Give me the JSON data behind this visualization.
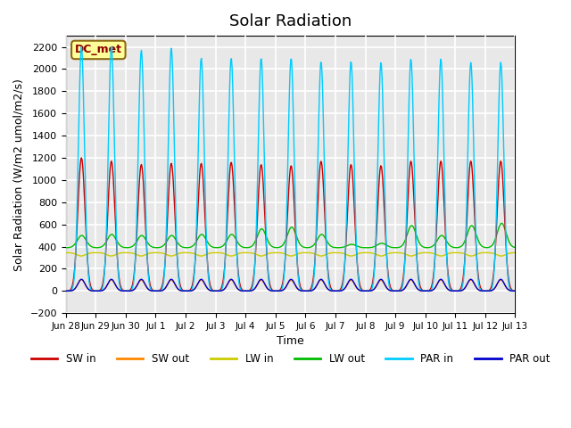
{
  "title": "Solar Radiation",
  "ylabel": "Solar Radiation (W/m2 umol/m2/s)",
  "xlabel": "Time",
  "ylim": [
    -200,
    2300
  ],
  "yticks": [
    -200,
    0,
    200,
    400,
    600,
    800,
    1000,
    1200,
    1400,
    1600,
    1800,
    2000,
    2200
  ],
  "background_color": "#e8e8e8",
  "grid_color": "white",
  "label_box_text": "DC_met",
  "label_box_facecolor": "#ffff99",
  "label_box_edgecolor": "#8b6914",
  "n_days": 15,
  "colors": {
    "SW_in": "#cc0000",
    "SW_out": "#ff8800",
    "LW_in": "#cccc00",
    "LW_out": "#00bb00",
    "PAR_in": "#00ccff",
    "PAR_out": "#0000cc"
  },
  "legend_labels": [
    "SW in",
    "SW out",
    "LW in",
    "LW out",
    "PAR in",
    "PAR out"
  ],
  "xtick_labels": [
    "Jun 28",
    "Jun 29",
    "Jun 30",
    "Jul 1",
    "Jul 2",
    "Jul 3",
    "Jul 4",
    "Jul 5",
    "Jul 6",
    "Jul 7",
    "Jul 8",
    "Jul 9",
    "Jul 10",
    "Jul 11",
    "Jul 12",
    "Jul 13"
  ],
  "SW_in_peaks": [
    1200,
    1170,
    1140,
    1150,
    1150,
    1160,
    1140,
    1130,
    1170,
    1140,
    1130,
    1170,
    1170,
    1170,
    1170
  ],
  "LW_out_peaks": [
    500,
    510,
    500,
    500,
    510,
    510,
    560,
    575,
    510,
    420,
    430,
    590,
    500,
    590,
    610
  ],
  "PAR_in_peaks": [
    2200,
    2200,
    2170,
    2190,
    2100,
    2100,
    2100,
    2100,
    2070,
    2070,
    2060,
    2090,
    2090,
    2060,
    2060
  ]
}
